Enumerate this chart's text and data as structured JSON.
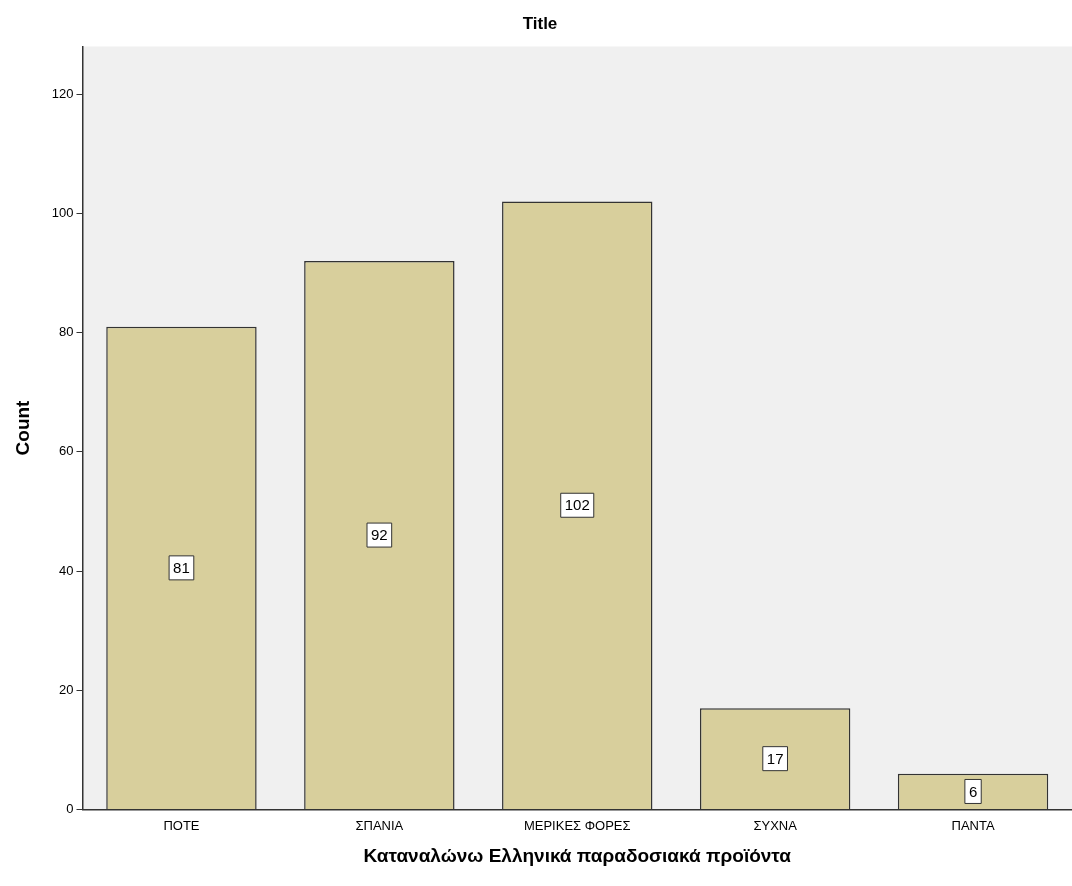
{
  "chart_data": {
    "type": "bar",
    "title": "Title",
    "xlabel": "Καταναλώνω Ελληνικά παραδοσιακά προϊόντα",
    "ylabel": "Count",
    "categories": [
      "ΠΟΤΕ",
      "ΣΠΑΝΙΑ",
      "ΜΕΡΙΚΕΣ ΦΟΡΕΣ",
      "ΣΥΧΝΑ",
      "ΠΑΝΤΑ"
    ],
    "values": [
      81,
      92,
      102,
      17,
      6
    ],
    "color": "#d8cf9c",
    "ylim": [
      0,
      128
    ],
    "yticks": [
      0,
      20,
      40,
      60,
      80,
      100,
      120
    ],
    "grid": false,
    "legend": false,
    "data_labels": true
  }
}
